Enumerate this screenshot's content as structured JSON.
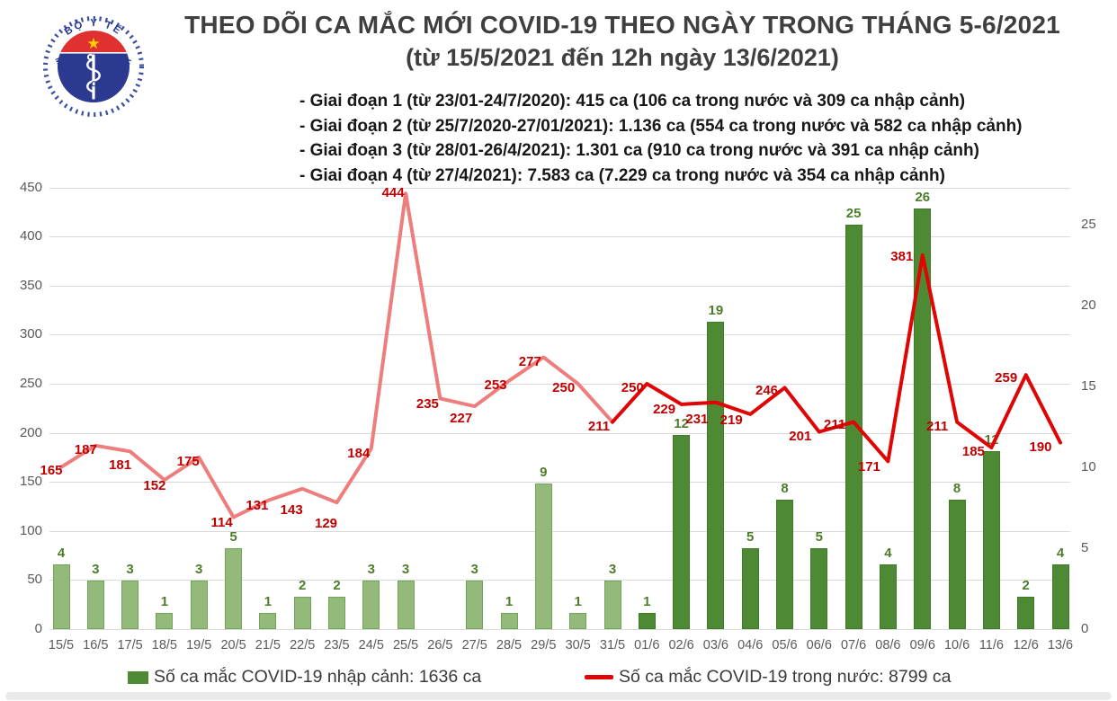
{
  "header": {
    "title_line1": "THEO DÕI CA MẮC MỚI COVID-19 THEO NGÀY TRONG THÁNG 5-6/2021",
    "title_line2": "(từ 15/5/2021 đến 12h ngày 13/6/2021)",
    "phases": [
      "- Giai đoạn 1 (từ 23/01-24/7/2020): 415 ca (106 ca trong nước và 309 ca nhập cảnh)",
      "- Giai đoạn 2 (từ 25/7/2020-27/01/2021): 1.136 ca (554 ca trong nước và 582 ca nhập cảnh)",
      "- Giai đoạn 3 (từ 28/01-26/4/2021): 1.301 ca (910 ca trong nước và 391 ca nhập cảnh)",
      "- Giai đoạn 4 (từ 27/4/2021): 7.583 ca (7.229 ca trong nước và 354 ca nhập cảnh)"
    ],
    "logo": {
      "top_text": "BỘ Y TẾ",
      "bottom_text": "MINISTRY OF HEALTH"
    }
  },
  "chart_data": {
    "type": "bar+line combo",
    "categories": [
      "15/5",
      "16/5",
      "17/5",
      "18/5",
      "19/5",
      "20/5",
      "21/5",
      "22/5",
      "23/5",
      "24/5",
      "25/5",
      "26/5",
      "27/5",
      "28/5",
      "29/5",
      "30/5",
      "31/5",
      "01/6",
      "02/6",
      "03/6",
      "04/6",
      "05/6",
      "06/6",
      "07/6",
      "08/6",
      "09/6",
      "10/6",
      "11/6",
      "12/6",
      "13/6"
    ],
    "series": [
      {
        "name": "Số ca mắc COVID-19 nhập cảnh",
        "type": "bar",
        "axis": "right",
        "values": [
          4,
          3,
          3,
          1,
          3,
          5,
          1,
          2,
          2,
          3,
          3,
          0,
          3,
          1,
          9,
          1,
          3,
          1,
          12,
          19,
          5,
          8,
          5,
          25,
          4,
          26,
          8,
          11,
          2,
          4
        ]
      },
      {
        "name": "Số ca mắc COVID-19 trong nước",
        "type": "line",
        "axis": "left",
        "values": [
          165,
          187,
          181,
          152,
          175,
          114,
          131,
          143,
          129,
          184,
          444,
          235,
          227,
          253,
          277,
          250,
          211,
          250,
          229,
          231,
          219,
          246,
          201,
          211,
          171,
          381,
          211,
          185,
          259,
          190
        ]
      }
    ],
    "left_axis": {
      "ticks": [
        0,
        50,
        100,
        150,
        200,
        250,
        300,
        350,
        400,
        450
      ],
      "range": [
        0,
        450
      ]
    },
    "right_axis": {
      "ticks": [
        0,
        5,
        10,
        15,
        20,
        25
      ],
      "range": [
        0,
        27
      ]
    },
    "style_split_after_index": 16,
    "grid": true,
    "colors": {
      "bar_may_fill": "#93ba7b",
      "bar_may_stroke": "#74a45a",
      "bar_june_fill": "#4e8a33",
      "bar_june_stroke": "#3f7a26",
      "line_may": "#ee7d7d",
      "line_june": "#e00404",
      "line_label": "#c00000",
      "bar_label": "#4e7d2a",
      "axis_text": "#595959",
      "grid_line": "#d9d9d9"
    }
  },
  "legend": {
    "items": [
      {
        "label": "Số ca mắc COVID-19 nhập cảnh: 1636 ca",
        "swatch": "bar",
        "color": "#4e8a33"
      },
      {
        "label": "Số ca mắc COVID-19 trong nước: 8799 ca",
        "swatch": "line",
        "color": "#e00404"
      }
    ]
  }
}
